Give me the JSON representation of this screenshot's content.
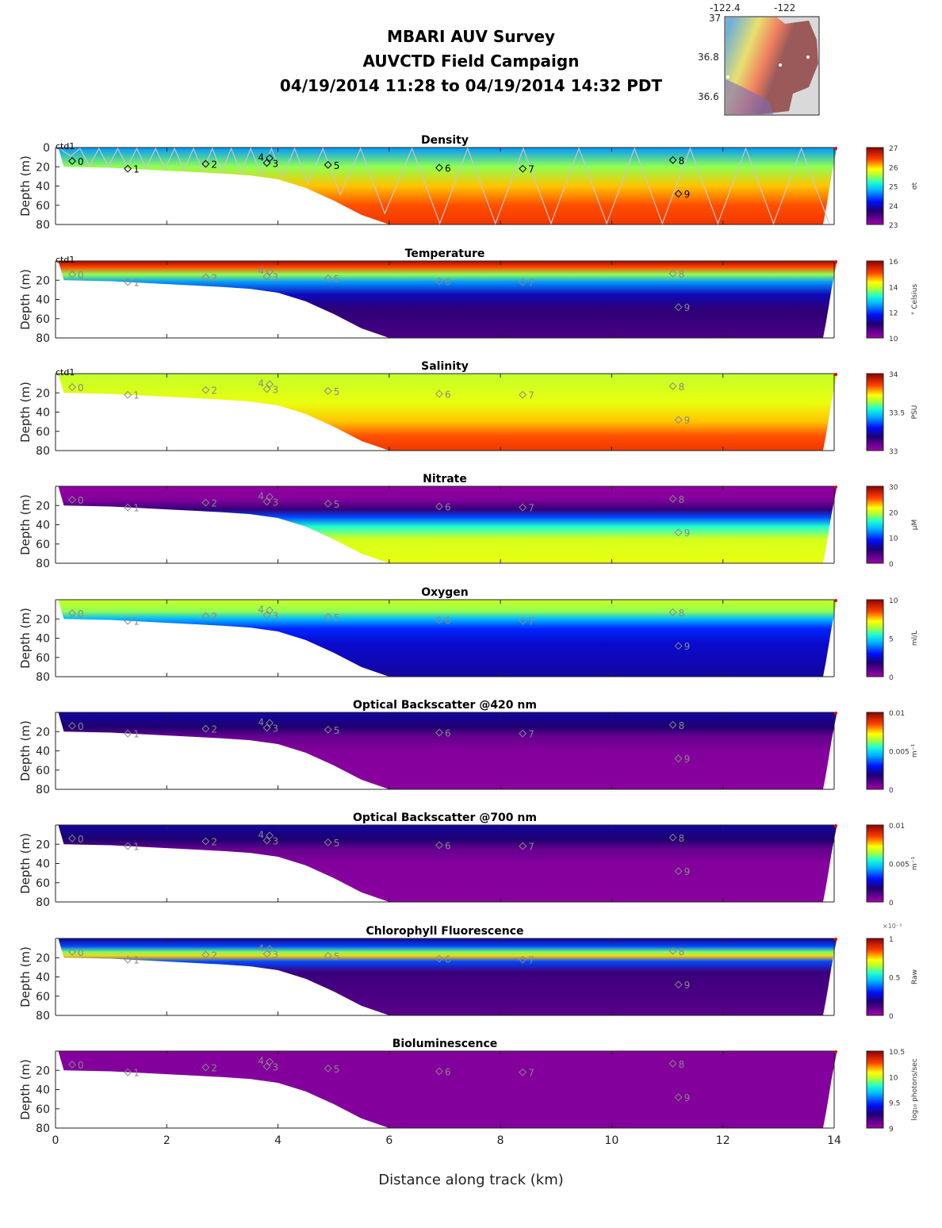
{
  "header": {
    "line1": "MBARI AUV Survey",
    "line2": "AUVCTD Field Campaign",
    "line3": "04/19/2014 11:28  to 04/19/2014 14:32 PDT"
  },
  "inset_map": {
    "lon_ticks": [
      "-122.4",
      "-122"
    ],
    "lat_ticks": [
      "37",
      "36.8",
      "36.6"
    ]
  },
  "chart_data": {
    "type": "heatmap",
    "xlabel": "Distance along track (km)",
    "ylabel": "Depth (m)",
    "xlim": [
      0,
      14
    ],
    "ylim": [
      80,
      0
    ],
    "x_ticks": [
      "0",
      "2",
      "4",
      "6",
      "8",
      "10",
      "12",
      "14"
    ],
    "cast_label": "ctd1",
    "waypoints": [
      {
        "label": "0",
        "km": 0.3,
        "depth": 14
      },
      {
        "label": "1",
        "km": 1.3,
        "depth": 22
      },
      {
        "label": "2",
        "km": 2.7,
        "depth": 17
      },
      {
        "label": "3",
        "km": 3.8,
        "depth": 16
      },
      {
        "label": "4",
        "km": 3.85,
        "depth": 11
      },
      {
        "label": "5",
        "km": 4.9,
        "depth": 18
      },
      {
        "label": "6",
        "km": 6.9,
        "depth": 21
      },
      {
        "label": "7",
        "km": 8.4,
        "depth": 22
      },
      {
        "label": "8",
        "km": 11.1,
        "depth": 13
      },
      {
        "label": "9",
        "km": 11.2,
        "depth": 48
      }
    ],
    "bottom_profile": {
      "km": [
        0.05,
        0.15,
        1,
        2,
        3,
        3.5,
        4,
        4.5,
        5,
        5.5,
        6,
        13.8,
        13.85,
        13.9,
        13.95,
        14.0,
        14.05
      ],
      "depth": [
        0,
        20,
        21,
        24,
        27,
        29,
        33,
        42,
        55,
        70,
        80,
        80,
        65,
        48,
        30,
        15,
        0
      ]
    },
    "panels": [
      {
        "title": "Density",
        "unit": "σt",
        "cbar_ticks": [
          "27",
          "26",
          "25",
          "24",
          "23"
        ],
        "y_ticks": [
          "0",
          "20",
          "40",
          "60",
          "80"
        ],
        "track": true,
        "cast": true,
        "label_color": "#000",
        "profile": {
          "depth": [
            0,
            20,
            40,
            60,
            80
          ],
          "norm": [
            0.42,
            0.62,
            0.76,
            0.84,
            0.87
          ]
        }
      },
      {
        "title": "Temperature",
        "unit": "° Celsius",
        "cbar_ticks": [
          "16",
          "14",
          "12",
          "10"
        ],
        "y_ticks": [
          "20",
          "40",
          "60",
          "80"
        ],
        "cast": true,
        "label_color": "#888",
        "profile": {
          "depth": [
            0,
            6,
            14,
            22,
            35,
            50,
            80
          ],
          "norm": [
            0.98,
            0.85,
            0.62,
            0.42,
            0.24,
            0.16,
            0.12
          ]
        }
      },
      {
        "title": "Salinity",
        "unit": "PSU",
        "cbar_ticks": [
          "34",
          "33.5",
          "33"
        ],
        "y_ticks": [
          "20",
          "40",
          "60",
          "80"
        ],
        "cast": true,
        "label_color": "#888",
        "profile": {
          "depth": [
            0,
            30,
            50,
            65,
            80
          ],
          "norm": [
            0.66,
            0.7,
            0.76,
            0.84,
            0.87
          ]
        }
      },
      {
        "title": "Nitrate",
        "unit": "μM",
        "cbar_ticks": [
          "30",
          "20",
          "10",
          "0"
        ],
        "y_ticks": [
          "20",
          "40",
          "60",
          "80"
        ],
        "label_color": "#888",
        "profile": {
          "depth": [
            0,
            14,
            24,
            32,
            42,
            55,
            80
          ],
          "norm": [
            0.02,
            0.04,
            0.15,
            0.35,
            0.55,
            0.68,
            0.7
          ]
        }
      },
      {
        "title": "Oxygen",
        "unit": "ml/L",
        "cbar_ticks": [
          "10",
          "5",
          "0"
        ],
        "y_ticks": [
          "20",
          "40",
          "60",
          "80"
        ],
        "label_color": "#888",
        "profile": {
          "depth": [
            0,
            12,
            20,
            30,
            45,
            80
          ],
          "norm": [
            0.67,
            0.62,
            0.45,
            0.32,
            0.26,
            0.22
          ]
        }
      },
      {
        "title": "Optical Backscatter @420 nm",
        "unit": "m⁻¹",
        "cbar_ticks": [
          "0.01",
          "0.005",
          "0"
        ],
        "y_ticks": [
          "20",
          "40",
          "60",
          "80"
        ],
        "label_color": "#888",
        "profile": {
          "depth": [
            0,
            15,
            25,
            40,
            80
          ],
          "norm": [
            0.22,
            0.18,
            0.08,
            0.04,
            0.03
          ]
        }
      },
      {
        "title": "Optical Backscatter @700 nm",
        "unit": "m⁻¹",
        "cbar_ticks": [
          "0.01",
          "0.005",
          "0"
        ],
        "y_ticks": [
          "20",
          "40",
          "60",
          "80"
        ],
        "label_color": "#888",
        "profile": {
          "depth": [
            0,
            15,
            25,
            40,
            80
          ],
          "norm": [
            0.22,
            0.18,
            0.08,
            0.04,
            0.03
          ]
        }
      },
      {
        "title": "Chlorophyll Fluorescence",
        "unit": "Raw",
        "cbar_exp": "×10⁻³",
        "cbar_ticks": [
          "1",
          "0.5",
          "0"
        ],
        "y_ticks": [
          "20",
          "40",
          "60",
          "80"
        ],
        "label_color": "#888",
        "profile": {
          "depth": [
            0,
            8,
            14,
            18,
            24,
            35,
            80
          ],
          "norm": [
            0.2,
            0.35,
            0.6,
            0.75,
            0.35,
            0.14,
            0.1
          ]
        }
      },
      {
        "title": "Bioluminescence",
        "unit": "log₁₀ photons/sec",
        "cbar_ticks": [
          "10.5",
          "10",
          "9.5",
          "9"
        ],
        "y_ticks": [
          "20",
          "40",
          "60",
          "80"
        ],
        "label_color": "#888",
        "profile": {
          "depth": [
            0,
            80
          ],
          "norm": [
            0.04,
            0.04
          ]
        }
      }
    ]
  }
}
